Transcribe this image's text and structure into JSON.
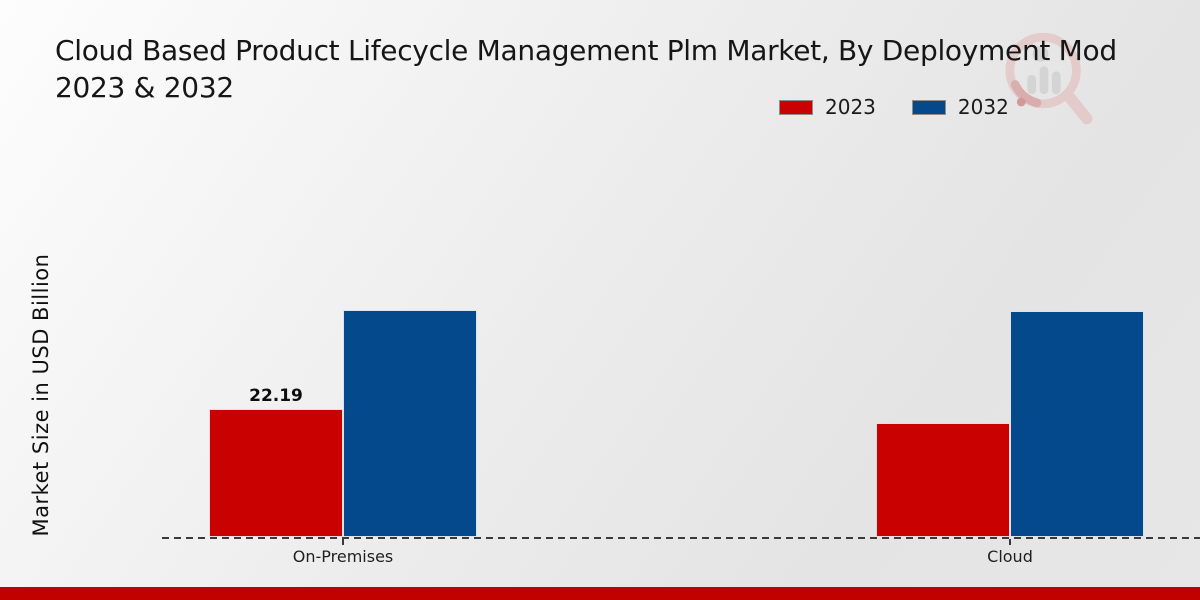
{
  "title": {
    "line1": "Cloud Based Product Lifecycle Management Plm Market, By Deployment Mod",
    "line2": "2023 & 2032"
  },
  "y_axis_label": "Market Size in USD Billion",
  "legend": [
    {
      "label": "2023",
      "color": "#c90101"
    },
    {
      "label": "2032",
      "color": "#04498c"
    }
  ],
  "colors": {
    "series_2023": "#c90101",
    "series_2032": "#04498c",
    "bottom_band": "#c10000",
    "axis": "#3a3a3a"
  },
  "chart_data": {
    "type": "bar",
    "title": "Cloud Based Product Lifecycle Management Plm Market, By Deployment Mod 2023 & 2032",
    "categories": [
      "On-Premises",
      "Cloud"
    ],
    "series": [
      {
        "name": "2023",
        "color": "#c90101",
        "values": [
          22.19,
          19.8
        ],
        "value_labels": [
          "22.19",
          ""
        ]
      },
      {
        "name": "2032",
        "color": "#04498c",
        "values": [
          39.4,
          39.2
        ],
        "value_labels": [
          "",
          ""
        ]
      }
    ],
    "xlabel": "",
    "ylabel": "Market Size in USD Billion",
    "ylim": [
      0,
      45
    ],
    "grid": false,
    "legend_position": "top-right",
    "baseline_style": "dashed",
    "y_axis_ticks_shown": false
  },
  "watermark": {
    "icon": "magnifier-bar-chart-icon"
  }
}
